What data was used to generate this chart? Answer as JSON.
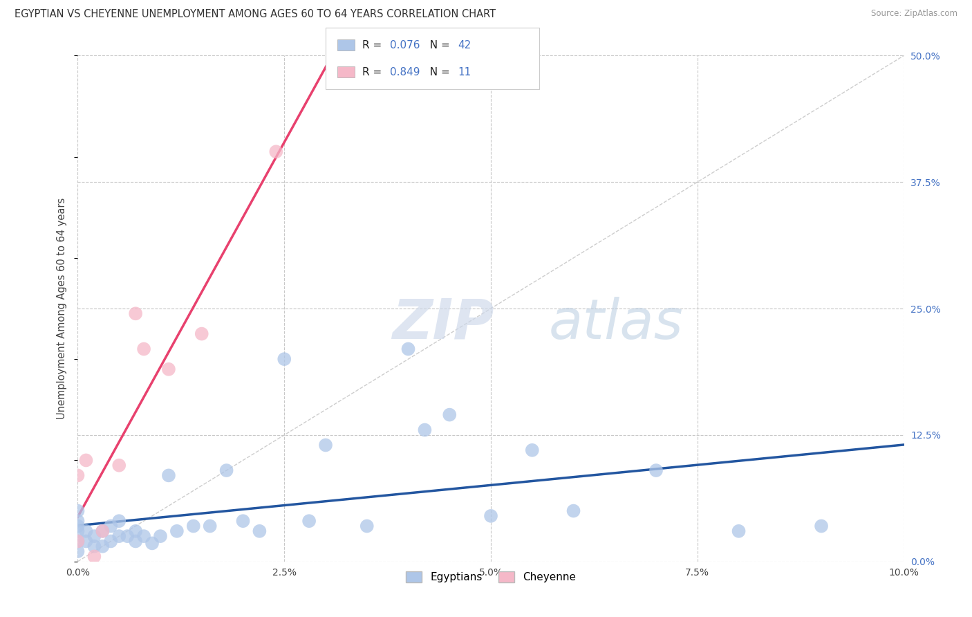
{
  "title": "EGYPTIAN VS CHEYENNE UNEMPLOYMENT AMONG AGES 60 TO 64 YEARS CORRELATION CHART",
  "source": "Source: ZipAtlas.com",
  "xlabel_vals": [
    0.0,
    2.5,
    5.0,
    7.5,
    10.0
  ],
  "ylabel_vals": [
    0.0,
    12.5,
    25.0,
    37.5,
    50.0
  ],
  "xlim": [
    0.0,
    10.0
  ],
  "ylim": [
    0.0,
    50.0
  ],
  "egyptian_color": "#aec6e8",
  "cheyenne_color": "#f5b8c8",
  "egyptian_line_color": "#2356a0",
  "cheyenne_line_color": "#e8416e",
  "diagonal_color": "#c8c8c8",
  "background_color": "#ffffff",
  "watermark_zip": "ZIP",
  "watermark_atlas": "atlas",
  "ylabel": "Unemployment Among Ages 60 to 64 years",
  "egyptians_label": "Egyptians",
  "cheyenne_label": "Cheyenne",
  "legend_r1": "R = 0.076",
  "legend_n1": "N = 42",
  "legend_r2": "R = 0.849",
  "legend_n2": "N =  11",
  "egyptian_x": [
    0.0,
    0.0,
    0.0,
    0.0,
    0.0,
    0.0,
    0.1,
    0.1,
    0.2,
    0.2,
    0.3,
    0.3,
    0.4,
    0.4,
    0.5,
    0.5,
    0.6,
    0.7,
    0.7,
    0.8,
    0.9,
    1.0,
    1.1,
    1.2,
    1.4,
    1.6,
    1.8,
    2.0,
    2.2,
    2.5,
    2.8,
    3.0,
    3.5,
    4.0,
    4.2,
    4.5,
    5.0,
    5.5,
    6.0,
    7.0,
    8.0,
    9.0
  ],
  "egyptian_y": [
    1.0,
    2.0,
    3.0,
    3.5,
    4.0,
    5.0,
    2.0,
    3.0,
    1.5,
    2.5,
    1.5,
    3.0,
    2.0,
    3.5,
    2.5,
    4.0,
    2.5,
    2.0,
    3.0,
    2.5,
    1.8,
    2.5,
    8.5,
    3.0,
    3.5,
    3.5,
    9.0,
    4.0,
    3.0,
    20.0,
    4.0,
    11.5,
    3.5,
    21.0,
    13.0,
    14.5,
    4.5,
    11.0,
    5.0,
    9.0,
    3.0,
    3.5
  ],
  "cheyenne_x": [
    0.0,
    0.0,
    0.1,
    0.2,
    0.3,
    0.5,
    0.7,
    0.8,
    1.1,
    1.5,
    2.4
  ],
  "cheyenne_y": [
    2.0,
    8.5,
    10.0,
    0.5,
    3.0,
    9.5,
    24.5,
    21.0,
    19.0,
    22.5,
    40.5
  ]
}
